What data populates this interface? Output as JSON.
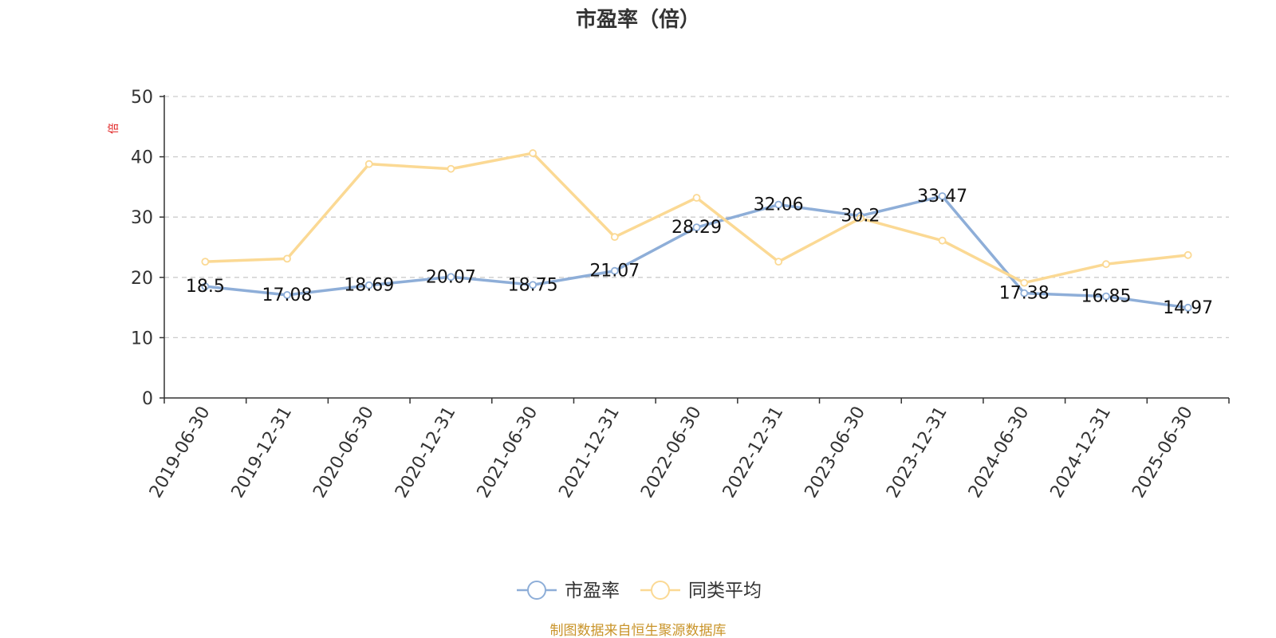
{
  "chart_data": {
    "type": "line",
    "title": "市盈率（倍）",
    "ylabel": "倍",
    "xlabel": "",
    "ylim": [
      0,
      50
    ],
    "yticks": [
      0,
      10,
      20,
      30,
      40,
      50
    ],
    "grid": "horizontal-dashed",
    "legend_position": "bottom-center",
    "categories": [
      "2019-06-30",
      "2019-12-31",
      "2020-06-30",
      "2020-12-31",
      "2021-06-30",
      "2021-12-31",
      "2022-06-30",
      "2022-12-31",
      "2023-06-30",
      "2023-12-31",
      "2024-06-30",
      "2024-12-31",
      "2025-06-30"
    ],
    "series": [
      {
        "name": "市盈率",
        "color": "#8eaed8",
        "values": [
          18.5,
          17.08,
          18.69,
          20.07,
          18.75,
          21.07,
          28.29,
          32.06,
          30.2,
          33.47,
          17.38,
          16.85,
          14.97
        ],
        "labels": [
          "18.5",
          "17.08",
          "18.69",
          "20.07",
          "18.75",
          "21.07",
          "28.29",
          "32.06",
          "30.2",
          "33.47",
          "17.38",
          "16.85",
          "14.97"
        ],
        "show_labels": true
      },
      {
        "name": "同类平均",
        "color": "#fbd994",
        "values": [
          22.6,
          23.1,
          38.8,
          38.0,
          40.6,
          26.7,
          33.2,
          22.6,
          29.8,
          26.1,
          19.1,
          22.2,
          23.7
        ],
        "show_labels": false
      }
    ]
  },
  "footer": {
    "source": "制图数据来自恒生聚源数据库",
    "source_color": "#c9942a"
  }
}
